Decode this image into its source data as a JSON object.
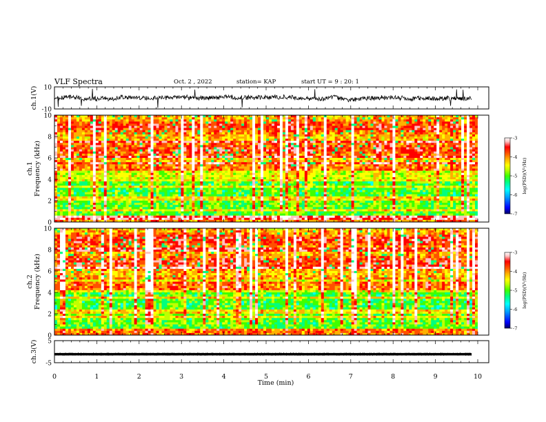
{
  "header": {
    "title": "VLF Spectra",
    "date": "Oct. 2 , 2022",
    "station": "station= KAP",
    "start": "start UT = 9 : 20: 1"
  },
  "chart_data": [
    {
      "type": "line",
      "panel": "ch1-waveform",
      "ylabel": "ch.1(V)",
      "ylim": [
        -10,
        10
      ],
      "yticks": [
        "10",
        "-10"
      ],
      "xlim": [
        0,
        10
      ],
      "description_of_trace": "noisy black trace mostly between -5 and 5"
    },
    {
      "type": "heatmap",
      "panel": "ch1-spectrogram",
      "ylabel": "ch.1 Frequency (kHz)",
      "ylim": [
        0,
        10
      ],
      "yticks": [
        "0",
        "2",
        "4",
        "6",
        "8",
        "10"
      ],
      "xlim": [
        0,
        10
      ],
      "colorbar": {
        "label": "log(PSD)(V²/Hz)",
        "range": [
          -7,
          -3
        ],
        "ticks": [
          "-3",
          "-4",
          "-5",
          "-6",
          "-7"
        ]
      }
    },
    {
      "type": "heatmap",
      "panel": "ch2-spectrogram",
      "ylabel": "ch.2 Frequency (kHz)",
      "ylim": [
        0,
        10
      ],
      "yticks": [
        "0",
        "2",
        "4",
        "6",
        "8",
        "10"
      ],
      "xlim": [
        0,
        10
      ],
      "colorbar": {
        "label": "log(PSD)(V²/Hz)",
        "range": [
          -7,
          -3
        ],
        "ticks": [
          "-3",
          "-4",
          "-5",
          "-6",
          "-7"
        ]
      }
    },
    {
      "type": "line",
      "panel": "ch3-waveform",
      "ylabel": "ch.3(V)",
      "ylim": [
        -5,
        5
      ],
      "yticks": [
        "5",
        "-5"
      ],
      "xlim": [
        0,
        10
      ],
      "description_of_trace": "dense black band near -1"
    }
  ],
  "xaxis": {
    "label": "Time (min)",
    "ticks": [
      "0",
      "1",
      "2",
      "3",
      "4",
      "5",
      "6",
      "7",
      "8",
      "9",
      "10"
    ]
  },
  "colors": {
    "axes": "#000000",
    "colormap": [
      "#000066",
      "#0000ff",
      "#00a0ff",
      "#00ffff",
      "#00ff80",
      "#40ff00",
      "#c0ff00",
      "#ffff00",
      "#ffb000",
      "#ff5000",
      "#ff0000",
      "#ffc0c0",
      "#ffffff"
    ]
  }
}
